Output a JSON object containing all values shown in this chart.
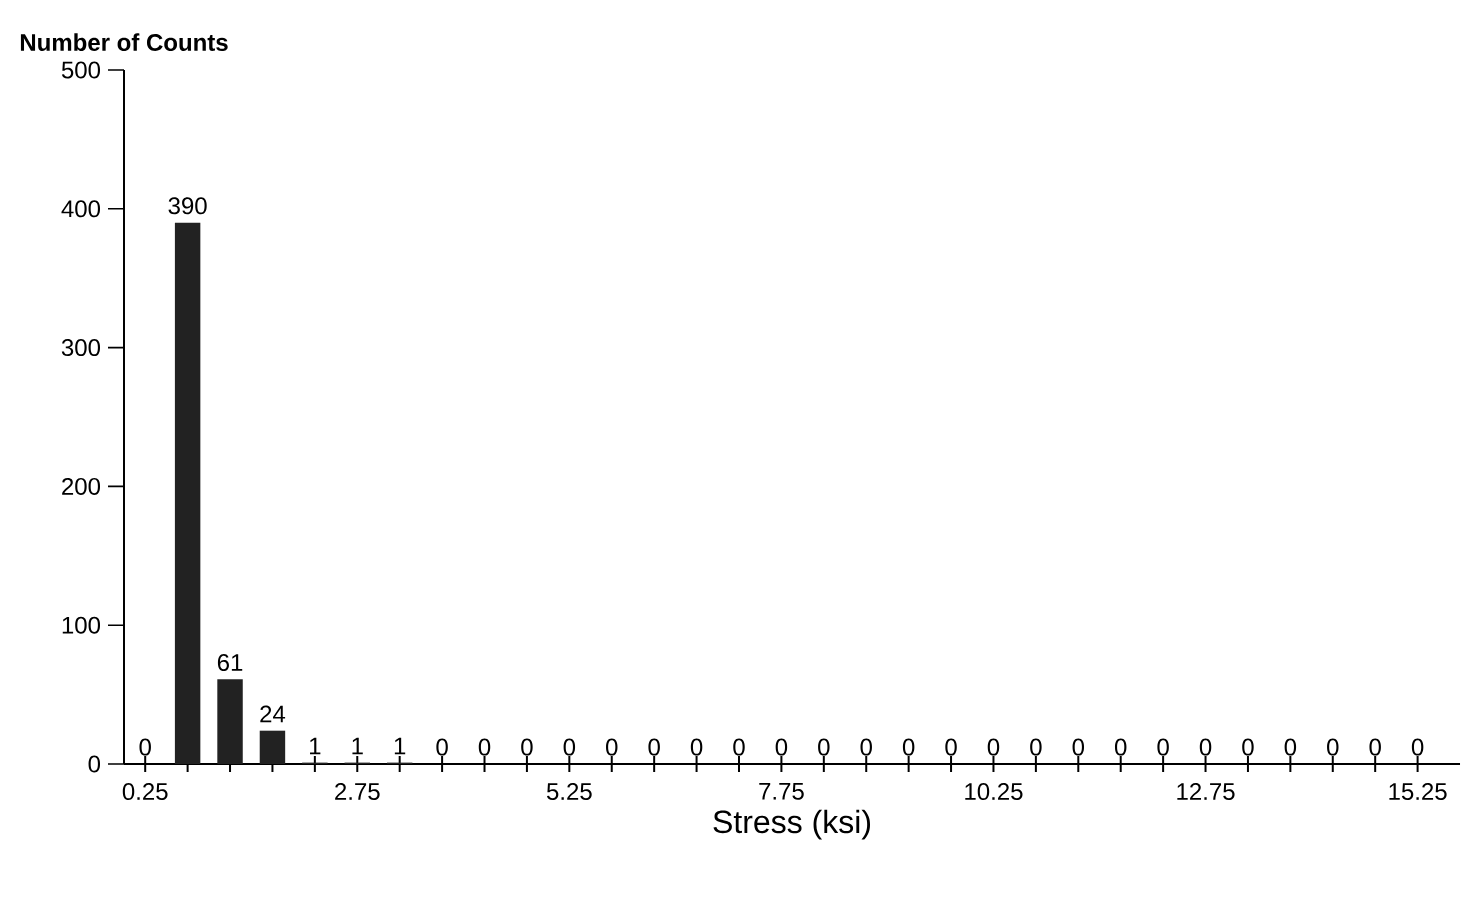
{
  "chart_data": {
    "type": "bar",
    "ylabel": "Number of Counts",
    "xlabel": "Stress (ksi)",
    "x": [
      0.25,
      0.75,
      1.25,
      1.75,
      2.25,
      2.75,
      3.25,
      3.75,
      4.25,
      4.75,
      5.25,
      5.75,
      6.25,
      6.75,
      7.25,
      7.75,
      8.25,
      8.75,
      9.25,
      9.75,
      10.25,
      10.75,
      11.25,
      11.75,
      12.25,
      12.75,
      13.25,
      13.75,
      14.25,
      14.75,
      15.25
    ],
    "values": [
      0,
      390,
      61,
      24,
      1,
      1,
      1,
      0,
      0,
      0,
      0,
      0,
      0,
      0,
      0,
      0,
      0,
      0,
      0,
      0,
      0,
      0,
      0,
      0,
      0,
      0,
      0,
      0,
      0,
      0,
      0
    ],
    "color": "#222222",
    "data_labels": true,
    "xlim": [
      0,
      15.75
    ],
    "xticks": [
      0.25,
      {
        "value": 0.75,
        "label": null
      },
      {
        "value": 1.25,
        "label": null
      },
      {
        "value": 1.75,
        "label": null
      },
      {
        "value": 2.25,
        "label": null
      },
      2.75,
      {
        "value": 3.25,
        "label": null
      },
      {
        "value": 3.75,
        "label": null
      },
      {
        "value": 4.25,
        "label": null
      },
      {
        "value": 4.75,
        "label": null
      },
      5.25,
      {
        "value": 5.75,
        "label": null
      },
      {
        "value": 6.25,
        "label": null
      },
      {
        "value": 6.75,
        "label": null
      },
      {
        "value": 7.25,
        "label": null
      },
      7.75,
      {
        "value": 8.25,
        "label": null
      },
      {
        "value": 8.75,
        "label": null
      },
      {
        "value": 9.25,
        "label": null
      },
      {
        "value": 9.75,
        "label": null
      },
      10.25,
      {
        "value": 10.75,
        "label": null
      },
      {
        "value": 11.25,
        "label": null
      },
      {
        "value": 11.75,
        "label": null
      },
      {
        "value": 12.25,
        "label": null
      },
      12.75,
      {
        "value": 13.25,
        "label": null
      },
      {
        "value": 13.75,
        "label": null
      },
      {
        "value": 14.25,
        "label": null
      },
      {
        "value": 14.75,
        "label": null
      },
      15.25
    ],
    "ylim": [
      0,
      500
    ],
    "yticks": [
      0,
      100,
      200,
      300,
      400,
      500
    ]
  }
}
